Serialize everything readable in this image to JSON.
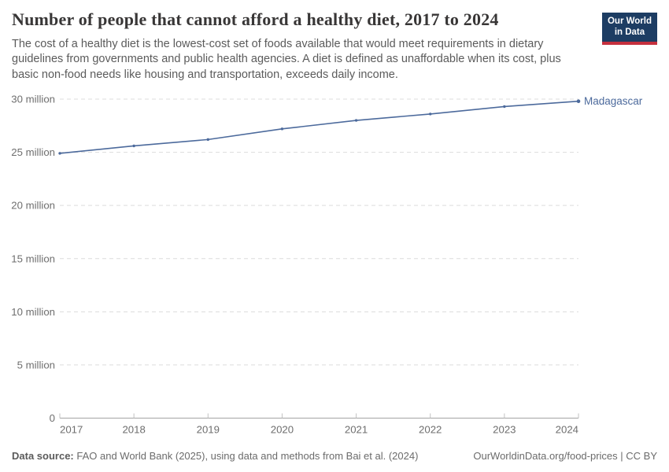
{
  "header": {
    "title": "Number of people that cannot afford a healthy diet, 2017 to 2024",
    "subtitle": "The cost of a healthy diet is the lowest-cost set of foods available that would meet requirements in dietary guidelines from governments and public health agencies. A diet is defined as unaffordable when its cost, plus basic non-food needs like housing and transportation, exceeds daily income.",
    "logo": {
      "line1": "Our World",
      "line2": "in Data"
    }
  },
  "footer": {
    "source_label": "Data source:",
    "source_text": "FAO and World Bank (2025), using data and methods from Bai et al. (2024)",
    "link": "OurWorldinData.org/food-prices | CC BY"
  },
  "colors": {
    "line": "#4c6a9c",
    "logo_bg": "#1d3d63",
    "logo_accent": "#c5303e",
    "grid": "#dcdcdc",
    "axis": "#a3a3a3",
    "tick": "#c2c2c2",
    "tick_label": "#6e6e6e"
  },
  "chart_data": {
    "type": "line",
    "title": "Number of people that cannot afford a healthy diet, 2017 to 2024",
    "x": [
      2017,
      2018,
      2019,
      2020,
      2021,
      2022,
      2023,
      2024
    ],
    "xlabel": "",
    "ylabel": "",
    "unit": "people",
    "ylim_million": [
      0,
      30
    ],
    "yticks": [
      {
        "value": 0,
        "label": "0"
      },
      {
        "value": 5,
        "label": "5 million"
      },
      {
        "value": 10,
        "label": "10 million"
      },
      {
        "value": 15,
        "label": "15 million"
      },
      {
        "value": 20,
        "label": "20 million"
      },
      {
        "value": 25,
        "label": "25 million"
      },
      {
        "value": 30,
        "label": "30 million"
      }
    ],
    "series": [
      {
        "name": "Madagascar",
        "color": "#4c6a9c",
        "values_million": [
          24.9,
          25.6,
          26.2,
          27.2,
          28.0,
          28.6,
          29.3,
          29.8
        ]
      }
    ],
    "grid": "horizontal-dashed",
    "legend": "entity-label-right-of-line"
  }
}
